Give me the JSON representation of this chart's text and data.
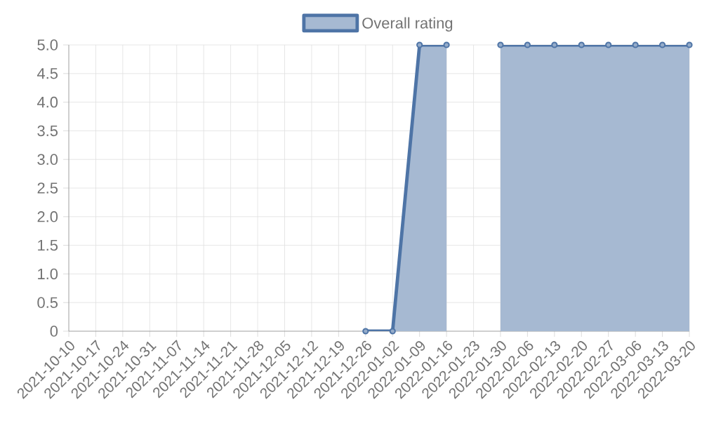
{
  "chart_data": {
    "type": "area",
    "categories": [
      "2021-10-10",
      "2021-10-17",
      "2021-10-24",
      "2021-10-31",
      "2021-11-07",
      "2021-11-14",
      "2021-11-21",
      "2021-11-28",
      "2021-12-05",
      "2021-12-12",
      "2021-12-19",
      "2021-12-26",
      "2022-01-02",
      "2022-01-09",
      "2022-01-16",
      "2022-01-23",
      "2022-01-30",
      "2022-02-06",
      "2022-02-13",
      "2022-02-20",
      "2022-02-27",
      "2022-03-06",
      "2022-03-13",
      "2022-03-20"
    ],
    "series": [
      {
        "name": "Overall rating",
        "color": "#4e74a6",
        "values": [
          null,
          null,
          null,
          null,
          null,
          null,
          null,
          null,
          null,
          null,
          null,
          0,
          0,
          5,
          5,
          null,
          5,
          5,
          5,
          5,
          5,
          5,
          5,
          5
        ]
      }
    ],
    "ylim": [
      0,
      5
    ],
    "yticks": [
      0,
      0.5,
      {
        "value": 1,
        "label": "1.0"
      },
      1.5,
      {
        "value": 2,
        "label": "2.0"
      },
      2.5,
      {
        "value": 3,
        "label": "3.0"
      },
      3.5,
      {
        "value": 4,
        "label": "4.0"
      },
      4.5,
      {
        "value": 5,
        "label": "5.0"
      }
    ],
    "grid": true,
    "legend": "top",
    "marker": "circle",
    "line_style": "solid"
  }
}
